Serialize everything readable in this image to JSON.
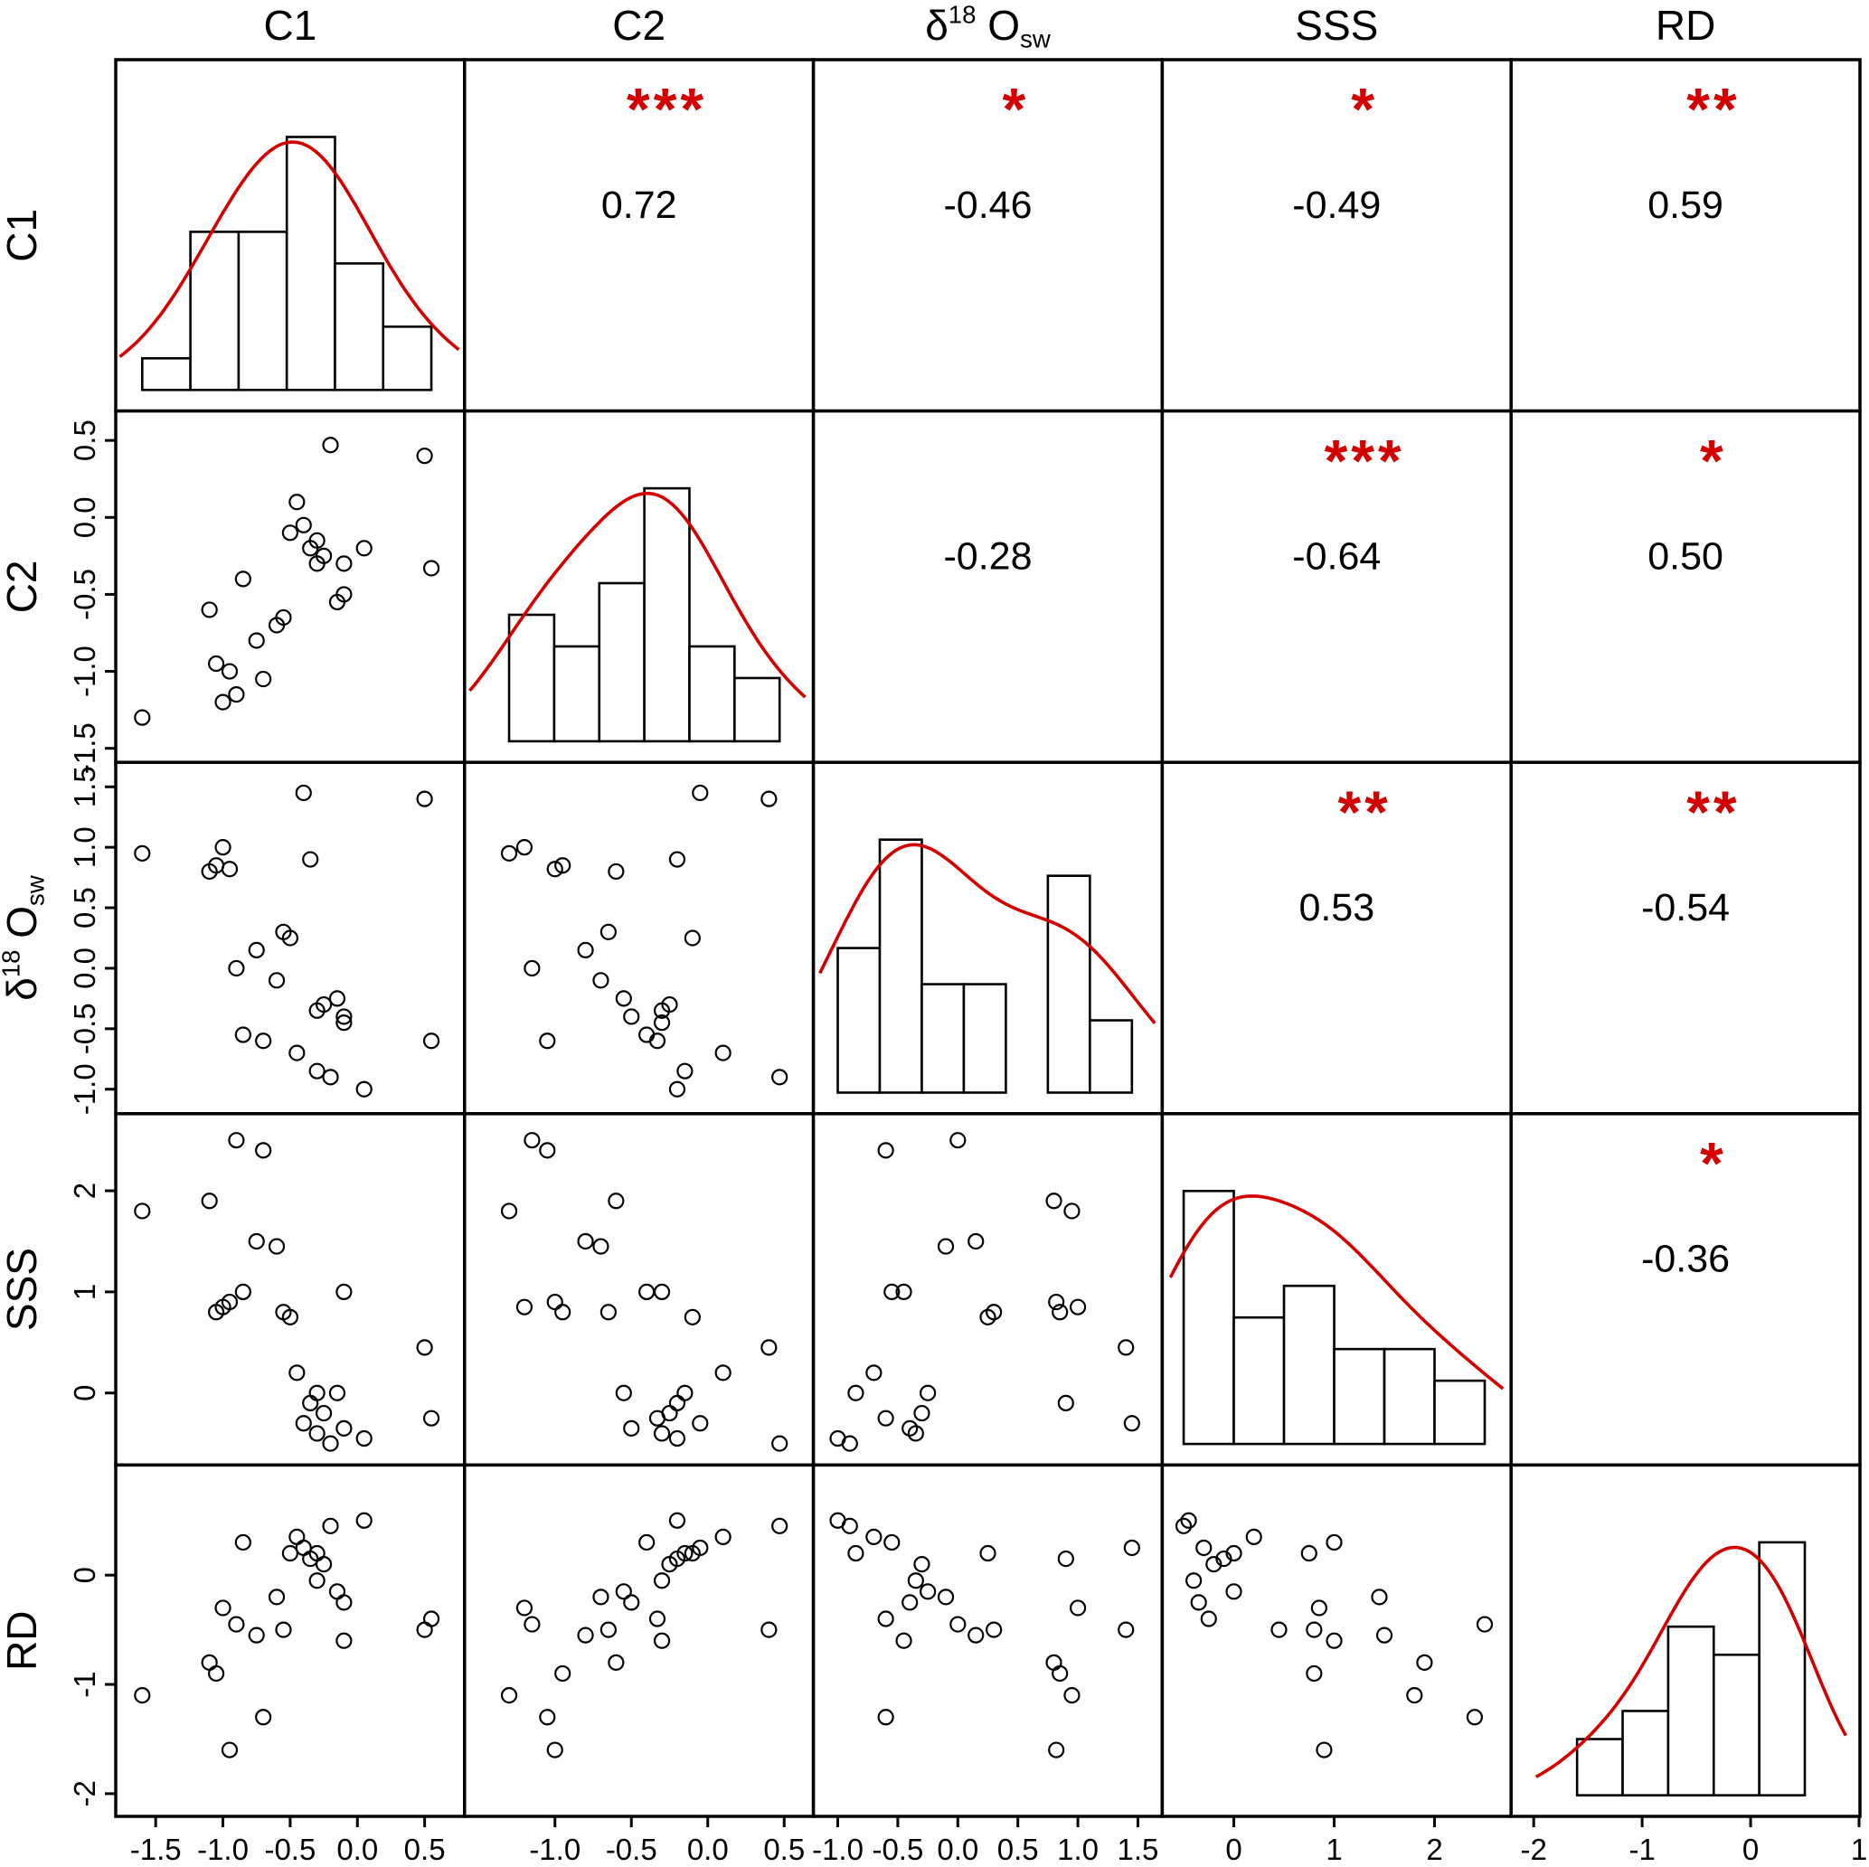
{
  "figure": {
    "kind": "correlation-pairs-plot",
    "background": "#ffffff",
    "ink_color": "#000000",
    "accent_red": "#d40000"
  },
  "chart_data": {
    "type": "scatterplot-matrix",
    "title": "",
    "grid": "off",
    "diagonal": "histogram-with-density",
    "upper_triangle": "correlation-coefficients-with-significance-stars",
    "lower_triangle": "scatterplots",
    "variables": [
      {
        "name": "C1",
        "label_rich": [
          {
            "t": "C1",
            "s": "n"
          }
        ],
        "domain": [
          -1.75,
          0.75
        ],
        "ticks_bottom": [
          "-1.5",
          "-1.0",
          "-0.5",
          "0.0",
          "0.5"
        ],
        "ticks_left": [],
        "hist_bins": 6
      },
      {
        "name": "C2",
        "label_rich": [
          {
            "t": "C2",
            "s": "n"
          }
        ],
        "domain": [
          -1.55,
          0.65
        ],
        "ticks_bottom": [
          "-1.0",
          "-0.5",
          "0.0",
          "0.5"
        ],
        "ticks_left": [
          "0.5",
          "0.0",
          "-0.5",
          "-1.0",
          "-1.5"
        ],
        "hist_bins": 6
      },
      {
        "name": "d18Osw",
        "label_rich": [
          {
            "t": "δ",
            "s": "n"
          },
          {
            "t": "18",
            "s": "sup"
          },
          {
            "t": " O",
            "s": "n"
          },
          {
            "t": "sw",
            "s": "sub"
          }
        ],
        "domain": [
          -1.15,
          1.65
        ],
        "ticks_bottom": [
          "-1.0",
          "-0.5",
          "0.0",
          "0.5",
          "1.0",
          "1.5"
        ],
        "ticks_left": [
          "1.5",
          "1.0",
          "0.5",
          "0.0",
          "-0.5",
          "-1.0"
        ],
        "hist_bins": 7
      },
      {
        "name": "SSS",
        "label_rich": [
          {
            "t": "SSS",
            "s": "n"
          }
        ],
        "domain": [
          -0.65,
          2.7
        ],
        "ticks_bottom": [
          "0",
          "1",
          "2"
        ],
        "ticks_left": [
          "2",
          "1",
          "0"
        ],
        "hist_bins": 6
      },
      {
        "name": "RD",
        "label_rich": [
          {
            "t": "RD",
            "s": "n"
          }
        ],
        "domain": [
          -2.15,
          0.95
        ],
        "ticks_bottom": [
          "-2",
          "-1",
          "0",
          "1"
        ],
        "ticks_left": [
          "0",
          "-1",
          "-2"
        ],
        "hist_bins": 5
      }
    ],
    "observations": [
      [
        -1.6,
        -1.3,
        0.95,
        1.8,
        -1.1
      ],
      [
        -1.1,
        -0.6,
        0.8,
        1.9,
        -0.8
      ],
      [
        -1.05,
        -0.95,
        0.85,
        0.8,
        -0.9
      ],
      [
        -1.0,
        -1.2,
        1.0,
        0.85,
        -0.3
      ],
      [
        -0.95,
        -1.0,
        0.82,
        0.9,
        -1.6
      ],
      [
        -0.9,
        -1.15,
        0.0,
        2.5,
        -0.45
      ],
      [
        -0.85,
        -0.4,
        -0.55,
        1.0,
        0.3
      ],
      [
        -0.75,
        -0.8,
        0.15,
        1.5,
        -0.55
      ],
      [
        -0.7,
        -1.05,
        -0.6,
        2.4,
        -1.3
      ],
      [
        -0.6,
        -0.7,
        -0.1,
        1.45,
        -0.2
      ],
      [
        -0.55,
        -0.65,
        0.3,
        0.8,
        -0.5
      ],
      [
        -0.5,
        -0.1,
        0.25,
        0.75,
        0.2
      ],
      [
        -0.45,
        0.1,
        -0.7,
        0.2,
        0.35
      ],
      [
        -0.4,
        -0.05,
        1.45,
        -0.3,
        0.25
      ],
      [
        -0.35,
        -0.2,
        0.9,
        -0.1,
        0.15
      ],
      [
        -0.3,
        -0.15,
        -0.85,
        0.0,
        0.2
      ],
      [
        -0.3,
        -0.3,
        -0.35,
        -0.4,
        -0.05
      ],
      [
        -0.25,
        -0.25,
        -0.3,
        -0.2,
        0.1
      ],
      [
        -0.2,
        0.47,
        -0.9,
        -0.5,
        0.45
      ],
      [
        -0.15,
        -0.55,
        -0.25,
        0.0,
        -0.15
      ],
      [
        -0.1,
        -0.5,
        -0.4,
        -0.35,
        -0.25
      ],
      [
        -0.1,
        -0.3,
        -0.45,
        1.0,
        -0.6
      ],
      [
        0.05,
        -0.2,
        -1.0,
        -0.45,
        0.5
      ],
      [
        0.5,
        0.4,
        1.4,
        0.45,
        -0.5
      ],
      [
        0.55,
        -0.33,
        -0.6,
        -0.25,
        -0.4
      ]
    ],
    "correlations": [
      {
        "row": 0,
        "col": 1,
        "row_var": "C1",
        "col_var": "C2",
        "value": "0.72",
        "stars": "***"
      },
      {
        "row": 0,
        "col": 2,
        "row_var": "C1",
        "col_var": "d18Osw",
        "value": "-0.46",
        "stars": "*"
      },
      {
        "row": 0,
        "col": 3,
        "row_var": "C1",
        "col_var": "SSS",
        "value": "-0.49",
        "stars": "*"
      },
      {
        "row": 0,
        "col": 4,
        "row_var": "C1",
        "col_var": "RD",
        "value": "0.59",
        "stars": "**"
      },
      {
        "row": 1,
        "col": 2,
        "row_var": "C2",
        "col_var": "d18Osw",
        "value": "-0.28",
        "stars": ""
      },
      {
        "row": 1,
        "col": 3,
        "row_var": "C2",
        "col_var": "SSS",
        "value": "-0.64",
        "stars": "***"
      },
      {
        "row": 1,
        "col": 4,
        "row_var": "C2",
        "col_var": "RD",
        "value": "0.50",
        "stars": "*"
      },
      {
        "row": 2,
        "col": 3,
        "row_var": "d18Osw",
        "col_var": "SSS",
        "value": "0.53",
        "stars": "**"
      },
      {
        "row": 2,
        "col": 4,
        "row_var": "d18Osw",
        "col_var": "RD",
        "value": "-0.54",
        "stars": "**"
      },
      {
        "row": 3,
        "col": 4,
        "row_var": "SSS",
        "col_var": "RD",
        "value": "-0.36",
        "stars": "*"
      }
    ]
  }
}
